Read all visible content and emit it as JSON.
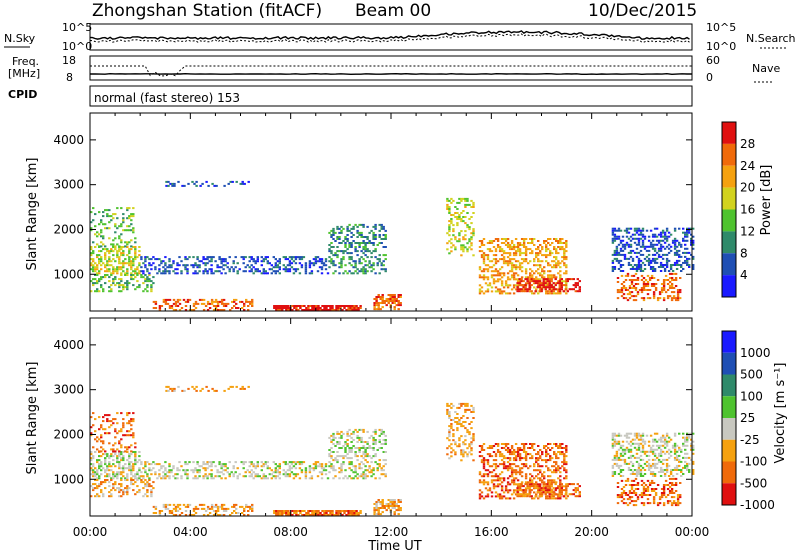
{
  "header": {
    "station": "Zhongshan Station (fitACF)",
    "beam": "Beam 00",
    "date": "10/Dec/2015"
  },
  "strip_panels": {
    "left_labels": {
      "nsky": "N.Sky",
      "freq_line1": "Freq.",
      "freq_line2": "[MHz]",
      "cpid": "CPID"
    },
    "right_labels": {
      "nsearch": "N.Search",
      "nave": "Nave"
    },
    "noise_ticks_left": [
      "10^5",
      "10^0"
    ],
    "noise_ticks_right": [
      "10^5",
      "10^0"
    ],
    "freq_ticks_left": [
      "18",
      "8"
    ],
    "nave_ticks_right": [
      "60",
      "0"
    ],
    "cpid_text": "normal (fast stereo) 153"
  },
  "chart_data": [
    {
      "type": "heatmap",
      "name": "Power",
      "ylabel": "Slant Range [km]",
      "xlabel": "",
      "ylim": [
        180,
        4600
      ],
      "yticks": [
        1000,
        2000,
        3000,
        4000
      ],
      "colorbar": {
        "label": "Power [dB]",
        "ticks": [
          "4",
          "8",
          "12",
          "16",
          "20",
          "24",
          "28"
        ],
        "colors": [
          "#1a1aff",
          "#1f4fb4",
          "#2f8a6a",
          "#4fc32f",
          "#d2d21e",
          "#f5a10f",
          "#f06a0a",
          "#e01010"
        ]
      }
    },
    {
      "type": "heatmap",
      "name": "Velocity",
      "ylabel": "Slant Range [km]",
      "xlabel": "Time UT",
      "ylim": [
        180,
        4600
      ],
      "yticks": [
        1000,
        2000,
        3000,
        4000
      ],
      "xticks": [
        "00:00",
        "04:00",
        "08:00",
        "12:00",
        "16:00",
        "20:00",
        "00:00"
      ],
      "colorbar": {
        "label": "Velocity [m s⁻¹]",
        "ticks": [
          "1000",
          "500",
          "100",
          "25",
          "-25",
          "-100",
          "-500",
          "-1000"
        ],
        "colors": [
          "#1a1aff",
          "#1f4fb4",
          "#2f8a6a",
          "#4fc32f",
          "#c8c8c0",
          "#f5a10f",
          "#f06a0a",
          "#e01010"
        ]
      }
    }
  ],
  "scatter_regions": [
    {
      "h0": 0.0,
      "h1": 2.0,
      "r0": 1000,
      "r1": 1600,
      "pc": 4,
      "vc": 4,
      "d": 0.45
    },
    {
      "h0": 0.0,
      "h1": 2.5,
      "r0": 600,
      "r1": 1000,
      "pc": 3,
      "vc": 5,
      "d": 0.3
    },
    {
      "h0": 0.0,
      "h1": 1.8,
      "r0": 1600,
      "r1": 2500,
      "pc": 3,
      "vc": 6,
      "d": 0.22
    },
    {
      "h0": 2.0,
      "h1": 9.5,
      "r0": 1000,
      "r1": 1400,
      "pc": 1,
      "vc": 4,
      "d": 0.4
    },
    {
      "h0": 2.5,
      "h1": 6.5,
      "r0": 180,
      "r1": 420,
      "pc": 6,
      "vc": 5,
      "d": 0.35
    },
    {
      "h0": 7.3,
      "h1": 10.8,
      "r0": 180,
      "r1": 300,
      "pc": 7,
      "vc": 6,
      "d": 0.8
    },
    {
      "h0": 9.5,
      "h1": 11.8,
      "r0": 1000,
      "r1": 2100,
      "pc": 2,
      "vc": 4,
      "d": 0.35
    },
    {
      "h0": 11.3,
      "h1": 12.4,
      "r0": 200,
      "r1": 520,
      "pc": 6,
      "vc": 5,
      "d": 0.55
    },
    {
      "h0": 14.2,
      "h1": 15.3,
      "r0": 1400,
      "r1": 2700,
      "pc": 4,
      "vc": 5,
      "d": 0.3
    },
    {
      "h0": 15.5,
      "h1": 19.0,
      "r0": 550,
      "r1": 1800,
      "pc": 5,
      "vc": 6,
      "d": 0.4
    },
    {
      "h0": 17.0,
      "h1": 19.5,
      "r0": 600,
      "r1": 900,
      "pc": 7,
      "vc": 6,
      "d": 0.55
    },
    {
      "h0": 20.8,
      "h1": 24.0,
      "r0": 1050,
      "r1": 2000,
      "pc": 1,
      "vc": 4,
      "d": 0.4
    },
    {
      "h0": 21.0,
      "h1": 23.5,
      "r0": 400,
      "r1": 1000,
      "pc": 6,
      "vc": 6,
      "d": 0.35
    },
    {
      "h0": 3.0,
      "h1": 6.3,
      "r0": 2950,
      "r1": 3050,
      "pc": 1,
      "vc": 5,
      "d": 0.25
    }
  ]
}
